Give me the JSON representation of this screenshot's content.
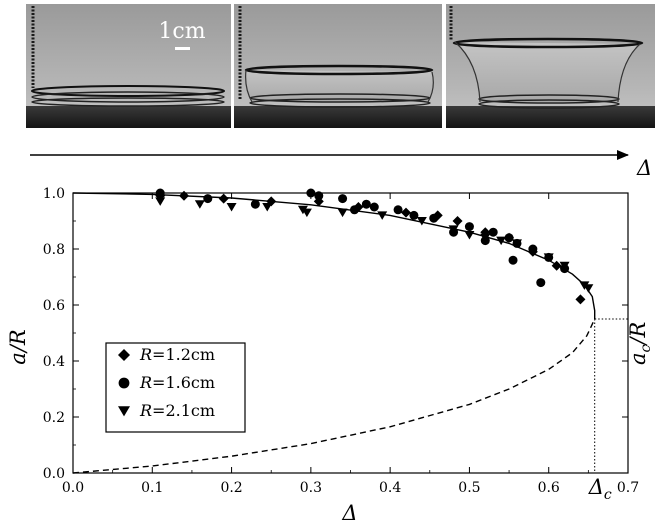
{
  "photos": {
    "scale_label": "1cm"
  },
  "arrow": {
    "label": "Δ"
  },
  "chart_data": {
    "type": "scatter",
    "xlabel": "Δ",
    "ylabel": "a/R",
    "right_label": "a_c/R",
    "critical_label": "Δ_c",
    "xlim": [
      0.0,
      0.7
    ],
    "ylim": [
      0.0,
      1.0
    ],
    "xticks": [
      "0.0",
      "0.1",
      "0.2",
      "0.3",
      "0.4",
      "0.5",
      "0.6",
      "0.7"
    ],
    "yticks": [
      "0.0",
      "0.2",
      "0.4",
      "0.6",
      "0.8",
      "1.0"
    ],
    "critical_point": {
      "x": 0.658,
      "y": 0.55
    },
    "legend_position": "bottom-left",
    "series": [
      {
        "name": "R=1.2cm",
        "label_var": "R",
        "label_rest": "=1.2cm",
        "marker": "diamond",
        "points": [
          [
            0.11,
            0.99
          ],
          [
            0.14,
            0.99
          ],
          [
            0.19,
            0.98
          ],
          [
            0.25,
            0.97
          ],
          [
            0.31,
            0.97
          ],
          [
            0.36,
            0.95
          ],
          [
            0.42,
            0.93
          ],
          [
            0.46,
            0.92
          ],
          [
            0.485,
            0.9
          ],
          [
            0.52,
            0.86
          ],
          [
            0.55,
            0.84
          ],
          [
            0.58,
            0.79
          ],
          [
            0.61,
            0.74
          ],
          [
            0.64,
            0.62
          ]
        ]
      },
      {
        "name": "R=1.6cm",
        "label_var": "R",
        "label_rest": "=1.6cm",
        "marker": "circle",
        "points": [
          [
            0.11,
            1.0
          ],
          [
            0.17,
            0.98
          ],
          [
            0.23,
            0.96
          ],
          [
            0.3,
            1.0
          ],
          [
            0.31,
            0.99
          ],
          [
            0.34,
            0.98
          ],
          [
            0.355,
            0.94
          ],
          [
            0.37,
            0.96
          ],
          [
            0.38,
            0.95
          ],
          [
            0.41,
            0.94
          ],
          [
            0.43,
            0.92
          ],
          [
            0.455,
            0.91
          ],
          [
            0.48,
            0.86
          ],
          [
            0.5,
            0.88
          ],
          [
            0.52,
            0.83
          ],
          [
            0.53,
            0.86
          ],
          [
            0.55,
            0.84
          ],
          [
            0.56,
            0.82
          ],
          [
            0.555,
            0.76
          ],
          [
            0.58,
            0.8
          ],
          [
            0.59,
            0.68
          ],
          [
            0.6,
            0.77
          ],
          [
            0.62,
            0.73
          ]
        ]
      },
      {
        "name": "R=2.1cm",
        "label_var": "R",
        "label_rest": "=2.1cm",
        "marker": "triangle",
        "points": [
          [
            0.11,
            0.97
          ],
          [
            0.16,
            0.96
          ],
          [
            0.2,
            0.95
          ],
          [
            0.245,
            0.95
          ],
          [
            0.29,
            0.94
          ],
          [
            0.295,
            0.93
          ],
          [
            0.34,
            0.93
          ],
          [
            0.39,
            0.92
          ],
          [
            0.44,
            0.9
          ],
          [
            0.48,
            0.87
          ],
          [
            0.5,
            0.85
          ],
          [
            0.52,
            0.84
          ],
          [
            0.54,
            0.83
          ],
          [
            0.56,
            0.82
          ],
          [
            0.6,
            0.77
          ],
          [
            0.62,
            0.74
          ],
          [
            0.645,
            0.67
          ],
          [
            0.65,
            0.66
          ]
        ]
      }
    ],
    "curves": [
      {
        "style": "solid",
        "points": [
          [
            0,
            1.0
          ],
          [
            0.1,
            0.995
          ],
          [
            0.2,
            0.982
          ],
          [
            0.3,
            0.958
          ],
          [
            0.4,
            0.92
          ],
          [
            0.5,
            0.86
          ],
          [
            0.55,
            0.82
          ],
          [
            0.6,
            0.76
          ],
          [
            0.63,
            0.71
          ],
          [
            0.645,
            0.672
          ],
          [
            0.655,
            0.63
          ],
          [
            0.658,
            0.58
          ],
          [
            0.658,
            0.55
          ]
        ]
      },
      {
        "style": "dashed",
        "points": [
          [
            0,
            0.0
          ],
          [
            0.1,
            0.025
          ],
          [
            0.2,
            0.06
          ],
          [
            0.3,
            0.105
          ],
          [
            0.4,
            0.165
          ],
          [
            0.5,
            0.245
          ],
          [
            0.55,
            0.3
          ],
          [
            0.6,
            0.37
          ],
          [
            0.63,
            0.43
          ],
          [
            0.648,
            0.49
          ],
          [
            0.658,
            0.55
          ]
        ]
      }
    ]
  }
}
